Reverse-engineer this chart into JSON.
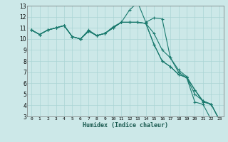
{
  "xlabel": "Humidex (Indice chaleur)",
  "bg_color": "#cce8e8",
  "grid_color": "#aad4d4",
  "line_color": "#1a7a6e",
  "xlim": [
    -0.5,
    23.5
  ],
  "ylim": [
    3,
    13
  ],
  "xticks": [
    0,
    1,
    2,
    3,
    4,
    5,
    6,
    7,
    8,
    9,
    10,
    11,
    12,
    13,
    14,
    15,
    16,
    17,
    18,
    19,
    20,
    21,
    22,
    23
  ],
  "yticks": [
    3,
    4,
    5,
    6,
    7,
    8,
    9,
    10,
    11,
    12,
    13
  ],
  "lines": [
    [
      10.8,
      10.4,
      10.8,
      11.0,
      11.2,
      10.2,
      10.0,
      10.8,
      10.3,
      10.5,
      11.1,
      11.5,
      12.6,
      13.3,
      11.5,
      11.9,
      11.8,
      8.3,
      7.0,
      6.5,
      5.0,
      4.4,
      4.1,
      2.7
    ],
    [
      10.8,
      10.4,
      10.8,
      11.0,
      11.2,
      10.2,
      10.0,
      10.7,
      10.3,
      10.5,
      11.0,
      11.5,
      11.5,
      11.5,
      11.4,
      10.5,
      9.0,
      8.3,
      7.2,
      6.6,
      5.4,
      4.4,
      4.1,
      2.7
    ],
    [
      10.8,
      10.4,
      10.8,
      11.0,
      11.2,
      10.2,
      10.0,
      10.7,
      10.3,
      10.5,
      11.0,
      11.5,
      11.5,
      11.5,
      11.4,
      9.5,
      8.0,
      7.5,
      6.8,
      6.5,
      5.4,
      4.3,
      4.1,
      2.7
    ],
    [
      10.8,
      10.4,
      10.8,
      11.0,
      11.2,
      10.2,
      10.0,
      10.7,
      10.3,
      10.5,
      11.0,
      11.5,
      11.5,
      11.5,
      11.4,
      9.5,
      8.0,
      7.5,
      6.8,
      6.5,
      4.3,
      4.1,
      2.7,
      2.7
    ]
  ]
}
